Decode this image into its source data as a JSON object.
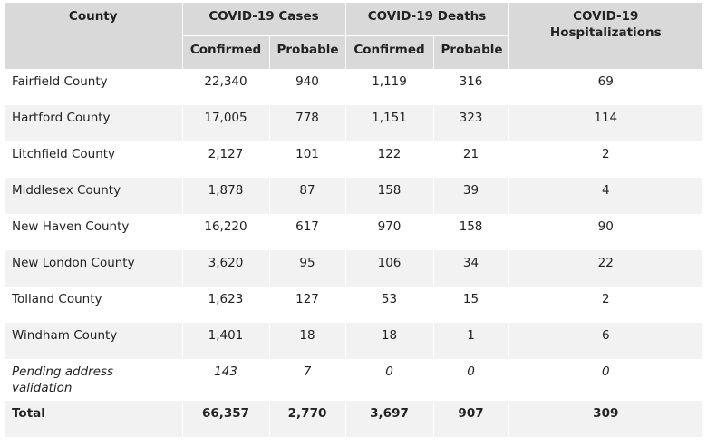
{
  "headers": {
    "county": "County",
    "cases": "COVID-19 Cases",
    "deaths": "COVID-19 Deaths",
    "hosp": "COVID-19 Hospitalizations",
    "confirmed": "Confirmed",
    "probable": "Probable"
  },
  "rows": [
    {
      "county": "Fairfield County",
      "cases_confirmed": "22,340",
      "cases_probable": "940",
      "deaths_confirmed": "1,119",
      "deaths_probable": "316",
      "hosp": "69"
    },
    {
      "county": "Hartford County",
      "cases_confirmed": "17,005",
      "cases_probable": "778",
      "deaths_confirmed": "1,151",
      "deaths_probable": "323",
      "hosp": "114"
    },
    {
      "county": "Litchfield County",
      "cases_confirmed": "2,127",
      "cases_probable": "101",
      "deaths_confirmed": "122",
      "deaths_probable": "21",
      "hosp": "2"
    },
    {
      "county": "Middlesex County",
      "cases_confirmed": "1,878",
      "cases_probable": "87",
      "deaths_confirmed": "158",
      "deaths_probable": "39",
      "hosp": "4"
    },
    {
      "county": "New Haven County",
      "cases_confirmed": "16,220",
      "cases_probable": "617",
      "deaths_confirmed": "970",
      "deaths_probable": "158",
      "hosp": "90"
    },
    {
      "county": "New London County",
      "cases_confirmed": "3,620",
      "cases_probable": "95",
      "deaths_confirmed": "106",
      "deaths_probable": "34",
      "hosp": "22"
    },
    {
      "county": "Tolland County",
      "cases_confirmed": "1,623",
      "cases_probable": "127",
      "deaths_confirmed": "53",
      "deaths_probable": "15",
      "hosp": "2"
    },
    {
      "county": "Windham County",
      "cases_confirmed": "1,401",
      "cases_probable": "18",
      "deaths_confirmed": "18",
      "deaths_probable": "1",
      "hosp": "6"
    },
    {
      "county": "Pending address validation",
      "cases_confirmed": "143",
      "cases_probable": "7",
      "deaths_confirmed": "0",
      "deaths_probable": "0",
      "hosp": "0"
    }
  ],
  "total": {
    "county": "Total",
    "cases_confirmed": "66,357",
    "cases_probable": "2,770",
    "deaths_confirmed": "3,697",
    "deaths_probable": "907",
    "hosp": "309"
  }
}
